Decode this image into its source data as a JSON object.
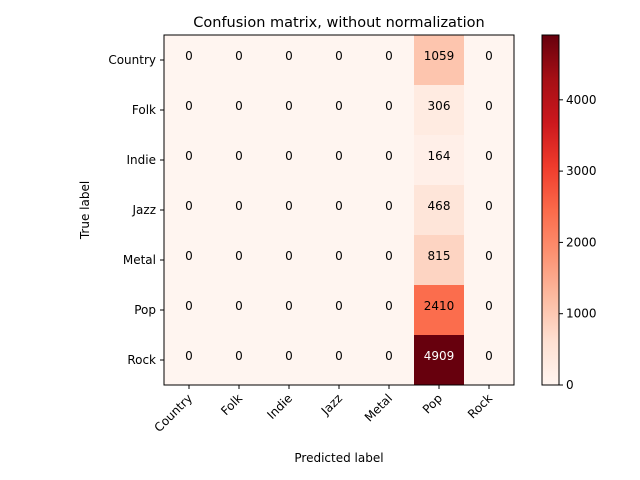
{
  "chart_data": {
    "type": "heatmap",
    "title": "Confusion matrix, without normalization",
    "xlabel": "Predicted label",
    "ylabel": "True label",
    "row_labels": [
      "Country",
      "Folk",
      "Indie",
      "Jazz",
      "Metal",
      "Pop",
      "Rock"
    ],
    "col_labels": [
      "Country",
      "Folk",
      "Indie",
      "Jazz",
      "Metal",
      "Pop",
      "Rock"
    ],
    "values": [
      [
        0,
        0,
        0,
        0,
        0,
        1059,
        0
      ],
      [
        0,
        0,
        0,
        0,
        0,
        306,
        0
      ],
      [
        0,
        0,
        0,
        0,
        0,
        164,
        0
      ],
      [
        0,
        0,
        0,
        0,
        0,
        468,
        0
      ],
      [
        0,
        0,
        0,
        0,
        0,
        815,
        0
      ],
      [
        0,
        0,
        0,
        0,
        0,
        2410,
        0
      ],
      [
        0,
        0,
        0,
        0,
        0,
        4909,
        0
      ]
    ],
    "colormap": "Reds",
    "colorbar": {
      "range": [
        0,
        4909
      ],
      "ticks": [
        0,
        1000,
        2000,
        3000,
        4000
      ],
      "tick_labels": [
        "0",
        "1000",
        "2000",
        "3000",
        "4000"
      ]
    },
    "grid": false
  }
}
